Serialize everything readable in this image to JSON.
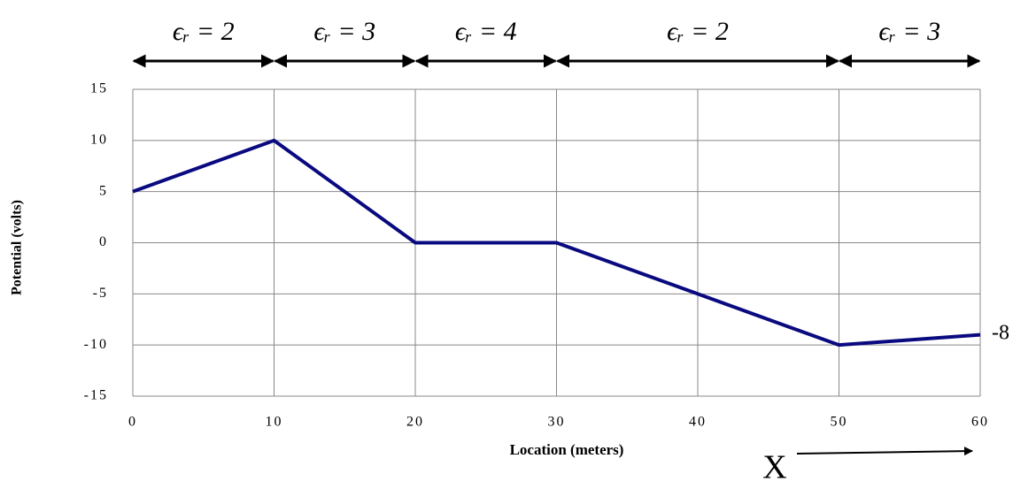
{
  "chart_data": {
    "type": "line",
    "x": [
      0,
      10,
      20,
      30,
      50,
      60
    ],
    "series": [
      {
        "color": "#0a0a80",
        "values": [
          5,
          10,
          0,
          0,
          -10,
          -9
        ]
      }
    ],
    "xlabel": "Location (meters)",
    "ylabel": "Potential (volts)",
    "xlim": [
      0,
      60
    ],
    "xticks": [
      0,
      10,
      20,
      30,
      40,
      50,
      60
    ],
    "ylim": [
      -15,
      15
    ],
    "yticks": [
      -15,
      -10,
      -5,
      0,
      5,
      10,
      15
    ],
    "grid": true,
    "regions": [
      {
        "label": "ϵᵣ = 2",
        "from": 0,
        "to": 10
      },
      {
        "label": "ϵᵣ = 3",
        "from": 10,
        "to": 20
      },
      {
        "label": "ϵᵣ = 4",
        "from": 20,
        "to": 30
      },
      {
        "label": "ϵᵣ = 2",
        "from": 30,
        "to": 50
      },
      {
        "label": "ϵᵣ = 3",
        "from": 50,
        "to": 60
      }
    ],
    "annotations": [
      "-8",
      "X"
    ]
  }
}
